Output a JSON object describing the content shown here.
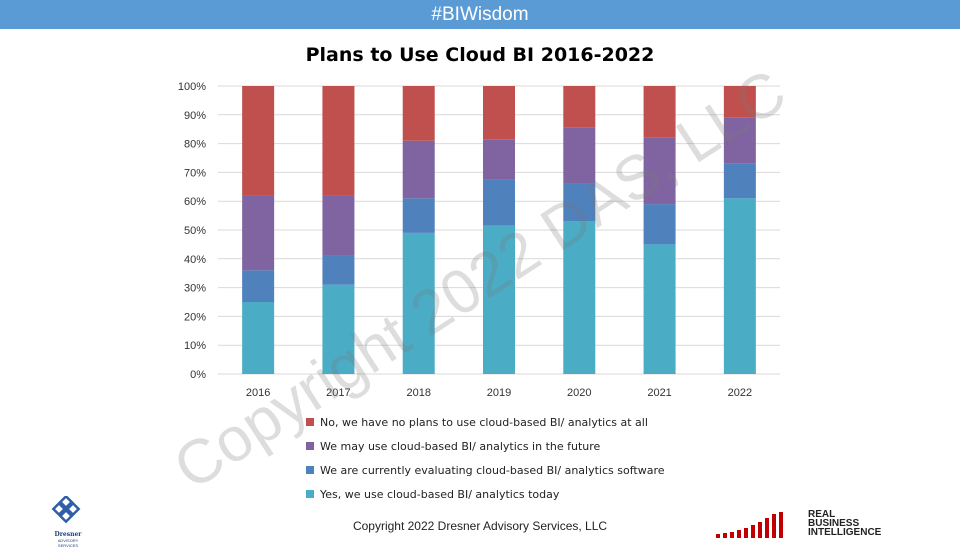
{
  "header": {
    "banner": "#BIWisdom"
  },
  "watermark": "Copyright 2022 DAS, LLC",
  "footer": {
    "copyright": "Copyright 2022 Dresner Advisory Services, LLC"
  },
  "logos": {
    "dresner_name": "Dresner",
    "dresner_sub": "ADVISORY SERVICES",
    "rbi_lines": [
      "REAL",
      "BUSINESS",
      "INTELLIGENCE"
    ]
  },
  "chart_data": {
    "type": "bar",
    "stacked": true,
    "title": "Plans to Use Cloud BI 2016-2022",
    "categories": [
      "2016",
      "2017",
      "2018",
      "2019",
      "2020",
      "2021",
      "2022"
    ],
    "ylim": [
      0,
      100
    ],
    "yticks": [
      "0%",
      "10%",
      "20%",
      "30%",
      "40%",
      "50%",
      "60%",
      "70%",
      "80%",
      "90%",
      "100%"
    ],
    "grid": true,
    "legend_position": "bottom",
    "series": [
      {
        "name": "Yes, we use cloud-based BI/ analytics  today",
        "color": "#4bacc6",
        "values": [
          25,
          31,
          49,
          51.5,
          53,
          45,
          61
        ]
      },
      {
        "name": "We are currently evaluating cloud-based BI/ analytics software",
        "color": "#4f81bd",
        "values": [
          11,
          10,
          12,
          16,
          13,
          14,
          12
        ]
      },
      {
        "name": "We may use cloud-based BI/ analytics in the future",
        "color": "#8064a2",
        "values": [
          26,
          21,
          20,
          14,
          19.5,
          23,
          16
        ]
      },
      {
        "name": "No, we have no plans to use cloud-based BI/ analytics at all",
        "color": "#c0504d",
        "values": [
          38,
          38,
          19,
          18.5,
          14.5,
          18,
          11
        ]
      }
    ]
  }
}
